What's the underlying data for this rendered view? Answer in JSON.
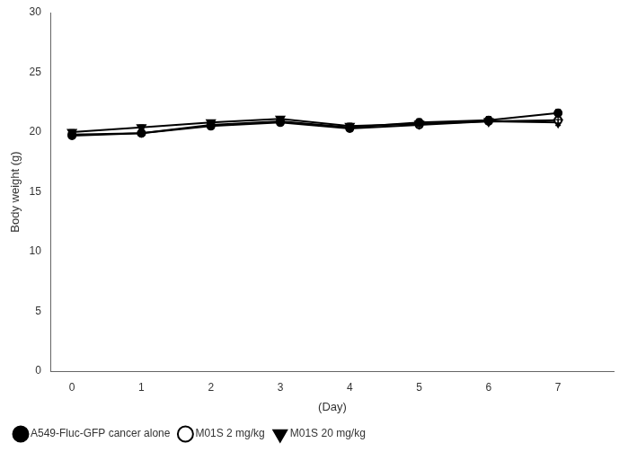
{
  "chart_data": {
    "type": "line",
    "ylabel": "Body weight (g)",
    "xlabel": "(Day)",
    "x": [
      0,
      1,
      2,
      3,
      4,
      5,
      6,
      7
    ],
    "series": [
      {
        "name": "A549-Fluc-GFP cancer alone",
        "color": "#000000",
        "marker": "circle",
        "values": [
          19.8,
          19.9,
          20.6,
          20.9,
          20.4,
          20.8,
          21.0,
          21.6
        ],
        "errors": [
          0.25,
          0.2,
          0.25,
          0.25,
          0.3,
          0.3,
          0.3,
          0.3
        ]
      },
      {
        "name": "M01S 2 mg/kg",
        "color": "#000000",
        "marker": "circle_open",
        "values": [
          19.7,
          19.9,
          20.5,
          20.8,
          20.3,
          20.6,
          20.9,
          21.0
        ],
        "errors": [
          0.2,
          0.2,
          0.2,
          0.2,
          0.25,
          0.25,
          0.25,
          0.25
        ]
      },
      {
        "name": "M01S 20 mg/kg",
        "color": "#000000",
        "marker": "triangle_down",
        "values": [
          20.0,
          20.4,
          20.8,
          21.1,
          20.5,
          20.7,
          20.9,
          20.8
        ],
        "errors": [
          0.2,
          0.2,
          0.2,
          0.2,
          0.25,
          0.25,
          0.25,
          0.25
        ]
      }
    ],
    "xlim": [
      -0.3,
      7.8
    ],
    "xticks": [
      0,
      1,
      2,
      3,
      4,
      5,
      6,
      7
    ],
    "ylim": [
      0,
      30
    ],
    "yticks": [
      0,
      5,
      10,
      15,
      20,
      25,
      30
    ],
    "grid": false,
    "legend": "lower left"
  }
}
